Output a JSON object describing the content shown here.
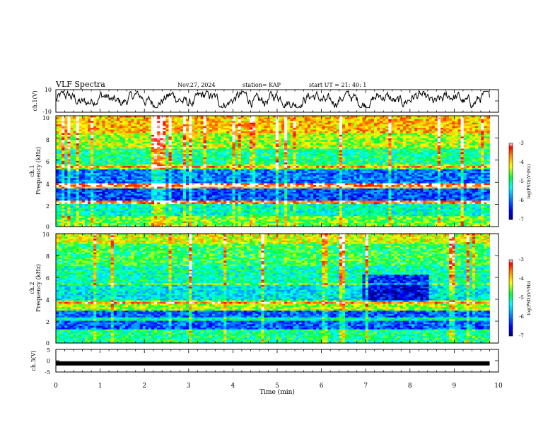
{
  "header": {
    "title": "VLF Spectra",
    "date": "Nov.27, 2024",
    "station": "station= KAP",
    "start": "start  UT  =   21: 40: 1"
  },
  "chart_data": [
    {
      "type": "line",
      "panel": "ch1-waveform",
      "ylabel": "ch.1(V)",
      "ylim": [
        -10,
        10
      ],
      "yticks": [
        "10",
        "-10"
      ],
      "xlim": [
        0,
        10
      ],
      "x_end": 9.8,
      "series": [
        {
          "values_described": "noisy waveform oscillating roughly between -5 and 8 V"
        }
      ]
    },
    {
      "type": "heatmap",
      "panel": "ch1-spectrogram",
      "ylabel_top": "ch.1",
      "ylabel": "Frequency (kHz)",
      "ylim": [
        0,
        10
      ],
      "yticks": [
        "0",
        "2",
        "4",
        "6",
        "8",
        "10"
      ],
      "xlim": [
        0,
        10
      ],
      "x_end": 9.8,
      "colorbar": {
        "label": "log(PSD)(V²/Hz)",
        "range": [
          -7,
          -3
        ],
        "ticks": [
          "-3",
          "-4",
          "-5",
          "-6",
          "-7"
        ]
      },
      "bands_kHz": [
        {
          "from": 0.0,
          "to": 1.0,
          "level": -4.6
        },
        {
          "from": 1.0,
          "to": 2.0,
          "level": -5.2
        },
        {
          "from": 2.0,
          "to": 2.4,
          "level": -4.3
        },
        {
          "from": 2.4,
          "to": 3.5,
          "level": -6.2
        },
        {
          "from": 3.5,
          "to": 3.9,
          "level": -4.0
        },
        {
          "from": 3.9,
          "to": 5.2,
          "level": -6.0
        },
        {
          "from": 5.2,
          "to": 5.6,
          "level": -4.6
        },
        {
          "from": 5.6,
          "to": 7.0,
          "level": -5.0
        },
        {
          "from": 7.0,
          "to": 8.5,
          "level": -4.4
        },
        {
          "from": 8.5,
          "to": 10.0,
          "level": -3.9
        }
      ]
    },
    {
      "type": "heatmap",
      "panel": "ch2-spectrogram",
      "ylabel_top": "ch.2",
      "ylabel": "Frequency (kHz)",
      "ylim": [
        0,
        10
      ],
      "yticks": [
        "0",
        "2",
        "4",
        "6",
        "8",
        "10"
      ],
      "xlim": [
        0,
        10
      ],
      "x_end": 9.8,
      "colorbar": {
        "label": "log(PSD)(V²/Hz)",
        "range": [
          -7,
          -3
        ],
        "ticks": [
          "-3",
          "-4",
          "-5",
          "-6",
          "-7"
        ]
      },
      "bands_kHz": [
        {
          "from": 0.0,
          "to": 1.2,
          "level": -5.0
        },
        {
          "from": 1.2,
          "to": 3.0,
          "level": -6.1
        },
        {
          "from": 3.0,
          "to": 3.7,
          "level": -4.4
        },
        {
          "from": 3.7,
          "to": 5.5,
          "level": -5.4
        },
        {
          "from": 5.5,
          "to": 7.0,
          "level": -5.1
        },
        {
          "from": 7.0,
          "to": 9.0,
          "level": -4.8
        },
        {
          "from": 9.0,
          "to": 10.0,
          "level": -4.2
        }
      ]
    },
    {
      "type": "line",
      "panel": "ch3-waveform",
      "ylabel": "ch.3(V)",
      "ylim": [
        -5,
        5
      ],
      "yticks": [
        "5",
        "0",
        "-5"
      ],
      "xlim": [
        0,
        10
      ],
      "x_end": 9.8,
      "series": [
        {
          "constant_value": -1.2
        }
      ],
      "xlabel": "Time (min)",
      "xticks": [
        "0",
        "1",
        "2",
        "3",
        "4",
        "5",
        "6",
        "7",
        "8",
        "9",
        "10"
      ]
    }
  ]
}
